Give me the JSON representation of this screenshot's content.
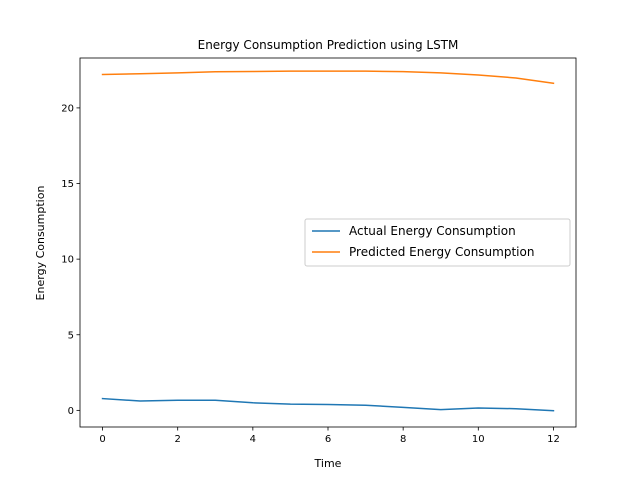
{
  "chart_data": {
    "type": "line",
    "title": "Energy Consumption Prediction using LSTM",
    "xlabel": "Time",
    "ylabel": "Energy Consumption",
    "xlim": [
      -0.6,
      12.6
    ],
    "ylim": [
      -1.1,
      23.3
    ],
    "xticks": [
      0,
      2,
      4,
      6,
      8,
      10,
      12
    ],
    "yticks": [
      0,
      5,
      10,
      15,
      20
    ],
    "grid": false,
    "legend_position": "center-right",
    "x": [
      0,
      1,
      2,
      3,
      4,
      5,
      6,
      7,
      8,
      9,
      10,
      11,
      12
    ],
    "series": [
      {
        "name": "Actual Energy Consumption",
        "color": "#1f77b4",
        "values": [
          0.78,
          0.62,
          0.67,
          0.67,
          0.5,
          0.41,
          0.39,
          0.34,
          0.2,
          0.05,
          0.16,
          0.11,
          -0.02
        ]
      },
      {
        "name": "Predicted Energy Consumption",
        "color": "#ff7f0e",
        "values": [
          22.21,
          22.26,
          22.32,
          22.39,
          22.41,
          22.43,
          22.43,
          22.43,
          22.4,
          22.32,
          22.18,
          21.98,
          21.63
        ]
      }
    ]
  }
}
